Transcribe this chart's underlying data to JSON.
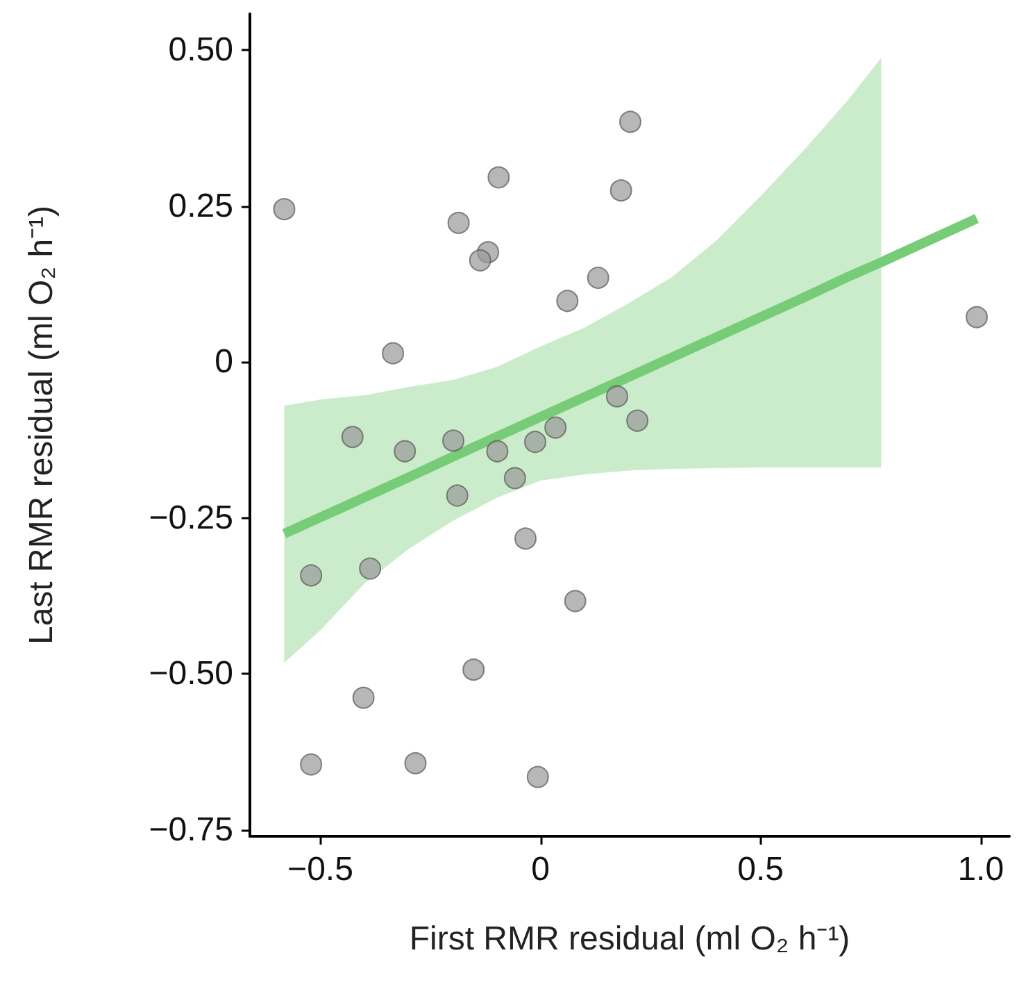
{
  "chart_data": {
    "type": "scatter",
    "xlabel": "First RMR residual (ml O₂ h⁻¹)",
    "ylabel": "Last RMR residual (ml O₂ h⁻¹)",
    "xlim": [
      -0.66,
      1.065
    ],
    "ylim": [
      -0.76,
      0.558
    ],
    "xticks": [
      {
        "value": -0.5,
        "label": "−0.5"
      },
      0,
      0.5,
      {
        "value": 1.0,
        "label": "1.0"
      }
    ],
    "yticks": [
      {
        "value": -0.75,
        "label": "−0.75"
      },
      {
        "value": -0.5,
        "label": "−0.50"
      },
      {
        "value": -0.25,
        "label": "−0.25"
      },
      0,
      0.25,
      {
        "value": 0.5,
        "label": "0.50"
      }
    ],
    "marker": "circle",
    "series": [
      {
        "color": "#999999",
        "x": [
          -0.582,
          -0.095,
          -0.186,
          -0.119,
          -0.137,
          0.204,
          0.183,
          0.131,
          0.061,
          0.991,
          -0.335,
          -0.427,
          -0.308,
          -0.198,
          -0.098,
          -0.012,
          0.034,
          -0.058,
          -0.189,
          -0.034,
          -0.521,
          -0.387,
          0.079,
          -0.152,
          -0.402,
          -0.521,
          -0.284,
          -0.006,
          0.174,
          0.22
        ],
        "values": [
          0.245,
          0.296,
          0.223,
          0.176,
          0.163,
          0.385,
          0.275,
          0.135,
          0.098,
          0.072,
          0.014,
          -0.12,
          -0.143,
          -0.126,
          -0.143,
          -0.128,
          -0.105,
          -0.186,
          -0.214,
          -0.283,
          -0.342,
          -0.331,
          -0.383,
          -0.493,
          -0.538,
          -0.645,
          -0.643,
          -0.665,
          -0.055,
          -0.094
        ]
      },
      {
        "type": "line",
        "color": "#77cc77",
        "line_style": "solid",
        "marker": "none",
        "x": [
          -0.582,
          -0.5,
          -0.4,
          -0.3,
          -0.2,
          -0.1,
          0,
          0.1,
          0.2,
          0.3,
          0.4,
          0.5,
          0.6,
          0.7,
          0.774,
          0.991
        ],
        "values": [
          -0.275,
          -0.249,
          -0.217,
          -0.185,
          -0.152,
          -0.12,
          -0.088,
          -0.056,
          -0.024,
          0.008,
          0.04,
          0.072,
          0.104,
          0.137,
          0.16,
          0.23
        ],
        "lower": [
          -0.482,
          -0.43,
          -0.355,
          -0.3,
          -0.255,
          -0.218,
          -0.19,
          -0.18,
          -0.174,
          -0.171,
          -0.17,
          -0.169,
          -0.169,
          -0.169,
          -0.169,
          null
        ],
        "upper": [
          -0.07,
          -0.06,
          -0.053,
          -0.04,
          -0.029,
          -0.008,
          0.025,
          0.055,
          0.094,
          0.137,
          0.195,
          0.266,
          0.341,
          0.421,
          0.488,
          null
        ]
      }
    ]
  }
}
